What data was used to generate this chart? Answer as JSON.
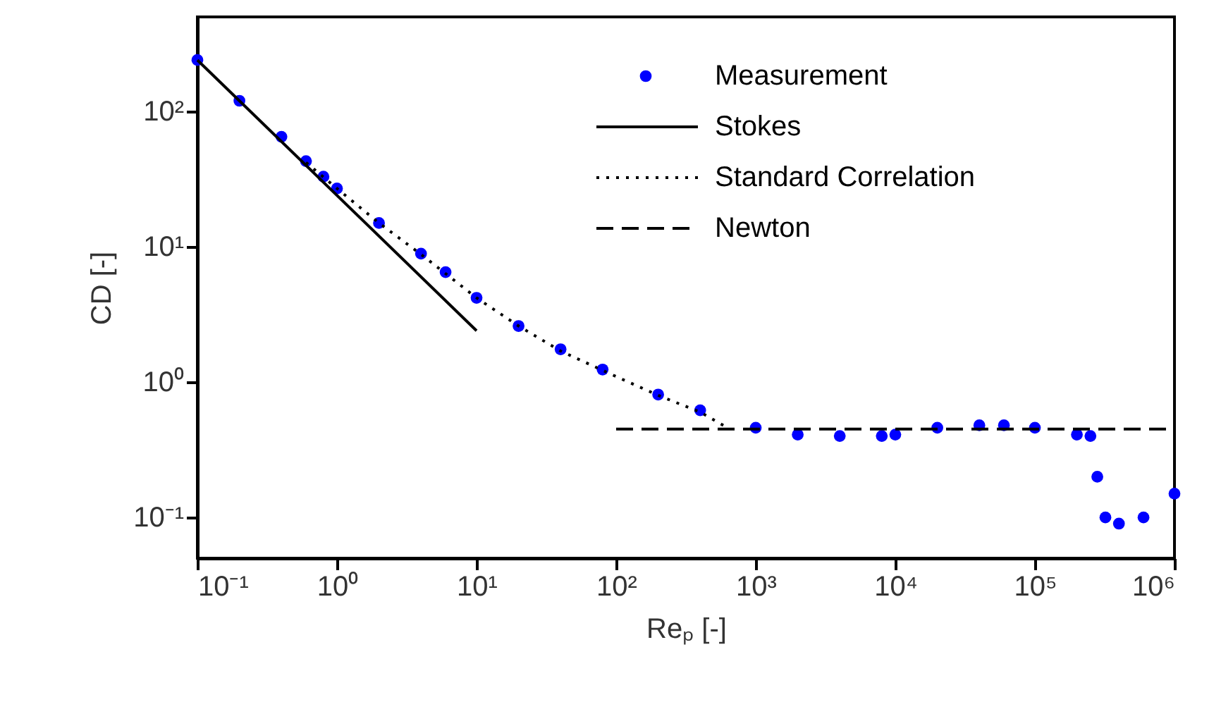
{
  "chart_data": {
    "type": "scatter",
    "xlabel": "Reₚ [-]",
    "ylabel": "CD [-]",
    "log": "xy",
    "xlim": [
      0.1,
      1000000
    ],
    "ylim": [
      0.05,
      500
    ],
    "xticks": [
      {
        "value": 0.1,
        "label": "10⁻¹"
      },
      {
        "value": 1,
        "label": "10⁰"
      },
      {
        "value": 10,
        "label": "10¹"
      },
      {
        "value": 100,
        "label": "10²"
      },
      {
        "value": 1000,
        "label": "10³"
      },
      {
        "value": 10000,
        "label": "10⁴"
      },
      {
        "value": 100000,
        "label": "10⁵"
      },
      {
        "value": 1000000,
        "label": "10⁶"
      }
    ],
    "yticks": [
      {
        "value": 0.1,
        "label": "10⁻¹"
      },
      {
        "value": 1,
        "label": "10⁰"
      },
      {
        "value": 10,
        "label": "10¹"
      },
      {
        "value": 100,
        "label": "10²"
      }
    ],
    "grid": false,
    "legend": "top right",
    "series": [
      {
        "name": "Measurement",
        "type": "scatter",
        "marker": "circle",
        "color": "#0000ff",
        "x": [
          0.1,
          0.2,
          0.4,
          0.6,
          0.8,
          1,
          2,
          4,
          6,
          10,
          20,
          40,
          80,
          200,
          400,
          1000,
          2000,
          4000,
          8000,
          10000,
          20000,
          40000,
          60000,
          100000,
          200000,
          250000,
          280000,
          320000,
          400000,
          600000,
          1000000
        ],
        "values": [
          240,
          120,
          65,
          43,
          33,
          27,
          15,
          8.9,
          6.5,
          4.2,
          2.6,
          1.75,
          1.24,
          0.81,
          0.62,
          0.46,
          0.41,
          0.4,
          0.4,
          0.41,
          0.46,
          0.48,
          0.48,
          0.46,
          0.41,
          0.4,
          0.2,
          0.1,
          0.09,
          0.1,
          0.15
        ]
      },
      {
        "name": "Stokes",
        "type": "line",
        "line_style": "solid",
        "color": "#000000",
        "x": [
          0.1,
          10
        ],
        "values": [
          240,
          2.4
        ]
      },
      {
        "name": "Standard Correlation",
        "type": "line",
        "line_style": "dotted",
        "color": "#000000",
        "x": [
          0.6,
          1,
          2,
          4,
          10,
          20,
          40,
          100,
          200,
          400,
          630
        ],
        "values": [
          42,
          27,
          15,
          8.8,
          4.2,
          2.6,
          1.7,
          1.1,
          0.8,
          0.6,
          0.46
        ]
      },
      {
        "name": "Newton",
        "type": "line",
        "line_style": "dashed",
        "color": "#000000",
        "x": [
          100,
          1000000
        ],
        "values": [
          0.45,
          0.45
        ]
      }
    ]
  }
}
